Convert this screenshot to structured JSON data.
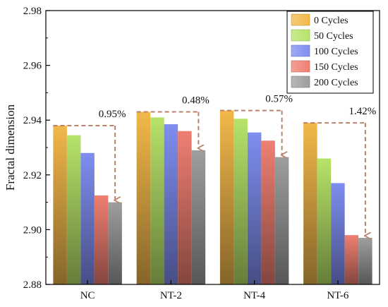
{
  "chart_data": {
    "type": "bar",
    "title": "",
    "xlabel": "",
    "ylabel": "Fractal dimension",
    "ylim": [
      2.88,
      2.98
    ],
    "yticks": [
      "2.88",
      "2.90",
      "2.92",
      "2.94",
      "2.96",
      "2.98"
    ],
    "categories": [
      "NC",
      "NT-2",
      "NT-4",
      "NT-6"
    ],
    "grid": false,
    "legend_position": "top-right",
    "series": [
      {
        "name": "0 Cycles",
        "color": "#f2b84a",
        "values": [
          2.938,
          2.943,
          2.9435,
          2.939
        ]
      },
      {
        "name": "50 Cycles",
        "color": "#b7e36a",
        "values": [
          2.9345,
          2.941,
          2.9405,
          2.926
        ]
      },
      {
        "name": "100 Cycles",
        "color": "#7f8ef0",
        "values": [
          2.928,
          2.9385,
          2.9355,
          2.917
        ]
      },
      {
        "name": "150 Cycles",
        "color": "#ef7f72",
        "values": [
          2.9125,
          2.936,
          2.9325,
          2.898
        ]
      },
      {
        "name": "200 Cycles",
        "color": "#9e9e9e",
        "values": [
          2.91,
          2.929,
          2.9265,
          2.897
        ]
      }
    ],
    "annotations": [
      {
        "category": "NC",
        "text": "0.95%",
        "from": 2.938,
        "to": 2.91
      },
      {
        "category": "NT-2",
        "text": "0.48%",
        "from": 2.943,
        "to": 2.929
      },
      {
        "category": "NT-4",
        "text": "0.57%",
        "from": 2.9435,
        "to": 2.9265
      },
      {
        "category": "NT-6",
        "text": "1.42%",
        "from": 2.939,
        "to": 2.897
      }
    ],
    "annotation_color": "#b9846a"
  }
}
